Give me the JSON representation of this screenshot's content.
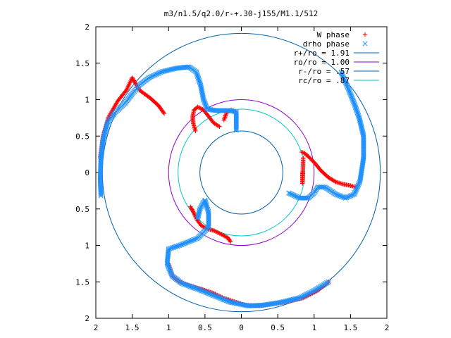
{
  "chart_data": {
    "type": "scatter",
    "title": "m3/n1.5/q2.0/r-+.30-j155/M1.1/512",
    "xlabel": "",
    "ylabel": "",
    "xlim": [
      -2,
      2
    ],
    "ylim": [
      -2,
      2
    ],
    "x_ticks": [
      -2,
      -1.5,
      -1,
      -0.5,
      0,
      0.5,
      1,
      1.5,
      2
    ],
    "y_ticks": [
      -2,
      -1.5,
      -1,
      -0.5,
      0,
      0.5,
      1,
      1.5,
      2
    ],
    "x_tick_labels": [
      "2",
      "1.5",
      "1",
      "0.5",
      "0",
      "0.5",
      "1",
      "1.5",
      "2"
    ],
    "y_tick_labels": [
      "2",
      "1.5",
      "1",
      "0.5",
      "0",
      "0.5",
      "1",
      "1.5",
      "2"
    ],
    "grid": false,
    "legend_position": "top-right",
    "series": [
      {
        "name": "W phase",
        "marker": "plus",
        "color": "#ff0000",
        "arms": [
          [
            [
              -0.63,
              0.57
            ],
            [
              -0.66,
              0.67
            ],
            [
              -0.67,
              0.77
            ],
            [
              -0.65,
              0.86
            ],
            [
              -0.6,
              0.9
            ],
            [
              -0.52,
              0.86
            ],
            [
              -0.45,
              0.77
            ],
            [
              -0.38,
              0.68
            ],
            [
              -0.3,
              0.63
            ]
          ],
          [
            [
              -0.08,
              0.83
            ],
            [
              -0.14,
              0.86
            ],
            [
              -0.2,
              0.83
            ],
            [
              -0.24,
              0.72
            ]
          ],
          [
            [
              0.83,
              0.28
            ],
            [
              0.86,
              0.27
            ],
            [
              0.92,
              0.22
            ],
            [
              1.0,
              0.14
            ],
            [
              1.1,
              0.02
            ],
            [
              1.2,
              -0.07
            ],
            [
              1.3,
              -0.13
            ],
            [
              1.4,
              -0.16
            ],
            [
              1.5,
              -0.18
            ],
            [
              1.58,
              -0.2
            ]
          ],
          [
            [
              0.84,
              0.0
            ],
            [
              0.84,
              -0.15
            ],
            [
              0.85,
              0.2
            ]
          ],
          [
            [
              -0.7,
              -0.47
            ],
            [
              -0.67,
              -0.52
            ],
            [
              -0.61,
              -0.65
            ],
            [
              -0.55,
              -0.73
            ],
            [
              -0.47,
              -0.77
            ],
            [
              -0.37,
              -0.8
            ],
            [
              -0.27,
              -0.85
            ],
            [
              -0.18,
              -0.9
            ],
            [
              -0.15,
              -0.95
            ]
          ],
          [
            [
              -1.0,
              -1.25
            ],
            [
              -0.95,
              -1.42
            ],
            [
              -0.85,
              -1.5
            ],
            [
              -0.72,
              -1.55
            ],
            [
              -0.55,
              -1.6
            ],
            [
              -0.4,
              -1.65
            ],
            [
              -0.25,
              -1.72
            ],
            [
              -0.1,
              -1.77
            ],
            [
              0.05,
              -1.82
            ],
            [
              0.25,
              -1.83
            ],
            [
              0.45,
              -1.8
            ],
            [
              0.65,
              -1.77
            ],
            [
              0.85,
              -1.72
            ],
            [
              1.05,
              -1.62
            ],
            [
              1.2,
              -1.5
            ]
          ],
          [
            [
              -1.06,
              0.81
            ],
            [
              -1.14,
              0.92
            ],
            [
              -1.25,
              1.02
            ],
            [
              -1.4,
              1.13
            ],
            [
              -1.5,
              1.3
            ],
            [
              -1.58,
              1.13
            ],
            [
              -1.7,
              0.98
            ],
            [
              -1.83,
              0.75
            ],
            [
              -1.9,
              0.5
            ],
            [
              -1.94,
              0.2
            ]
          ]
        ]
      },
      {
        "name": "drho phase",
        "marker": "cross",
        "color": "#1e90ff",
        "arms": [
          [
            [
              -1.93,
              -0.32
            ],
            [
              -1.94,
              -0.1
            ],
            [
              -1.93,
              0.2
            ],
            [
              -1.9,
              0.45
            ],
            [
              -1.84,
              0.68
            ],
            [
              -1.74,
              0.82
            ],
            [
              -1.6,
              0.95
            ],
            [
              -1.5,
              1.08
            ],
            [
              -1.4,
              1.2
            ],
            [
              -1.27,
              1.3
            ],
            [
              -1.1,
              1.38
            ],
            [
              -0.9,
              1.43
            ],
            [
              -0.72,
              1.45
            ],
            [
              -0.62,
              1.38
            ],
            [
              -0.56,
              1.2
            ],
            [
              -0.52,
              1.0
            ],
            [
              -0.47,
              0.87
            ],
            [
              -0.35,
              0.85
            ],
            [
              -0.15,
              0.85
            ],
            [
              -0.07,
              0.83
            ],
            [
              -0.07,
              0.58
            ]
          ],
          [
            [
              1.37,
              1.38
            ],
            [
              1.47,
              1.15
            ],
            [
              1.55,
              0.95
            ],
            [
              1.62,
              0.75
            ],
            [
              1.68,
              0.5
            ],
            [
              1.68,
              0.2
            ],
            [
              1.63,
              -0.12
            ],
            [
              1.55,
              -0.3
            ],
            [
              1.43,
              -0.35
            ],
            [
              1.3,
              -0.3
            ],
            [
              1.15,
              -0.2
            ],
            [
              1.05,
              -0.2
            ],
            [
              1.0,
              -0.28
            ],
            [
              0.92,
              -0.35
            ],
            [
              0.8,
              -0.35
            ],
            [
              0.65,
              -0.28
            ]
          ],
          [
            [
              -0.6,
              -0.63
            ],
            [
              -0.57,
              -0.5
            ],
            [
              -0.5,
              -0.38
            ],
            [
              -0.45,
              -0.55
            ],
            [
              -0.45,
              -0.75
            ],
            [
              -0.6,
              -0.9
            ],
            [
              -0.85,
              -1.0
            ],
            [
              -1.0,
              -1.05
            ],
            [
              -1.02,
              -1.25
            ],
            [
              -0.95,
              -1.42
            ],
            [
              -0.82,
              -1.52
            ],
            [
              -0.6,
              -1.6
            ],
            [
              -0.35,
              -1.7
            ],
            [
              -0.15,
              -1.78
            ],
            [
              0.1,
              -1.83
            ],
            [
              0.3,
              -1.82
            ],
            [
              0.55,
              -1.78
            ],
            [
              0.8,
              -1.72
            ],
            [
              1.0,
              -1.62
            ],
            [
              1.2,
              -1.5
            ]
          ]
        ]
      }
    ],
    "circles": [
      {
        "name": "r+/ro = 1.91",
        "radius": 1.91,
        "color": "#0060ad"
      },
      {
        "name": "ro/ro = 1.00",
        "radius": 1.0,
        "color": "#9400d3"
      },
      {
        "name": "r-/ro = .57",
        "radius": 0.57,
        "color": "#0060ad"
      },
      {
        "name": "rc/ro = .87",
        "radius": 0.87,
        "color": "#00c8c8"
      }
    ]
  }
}
